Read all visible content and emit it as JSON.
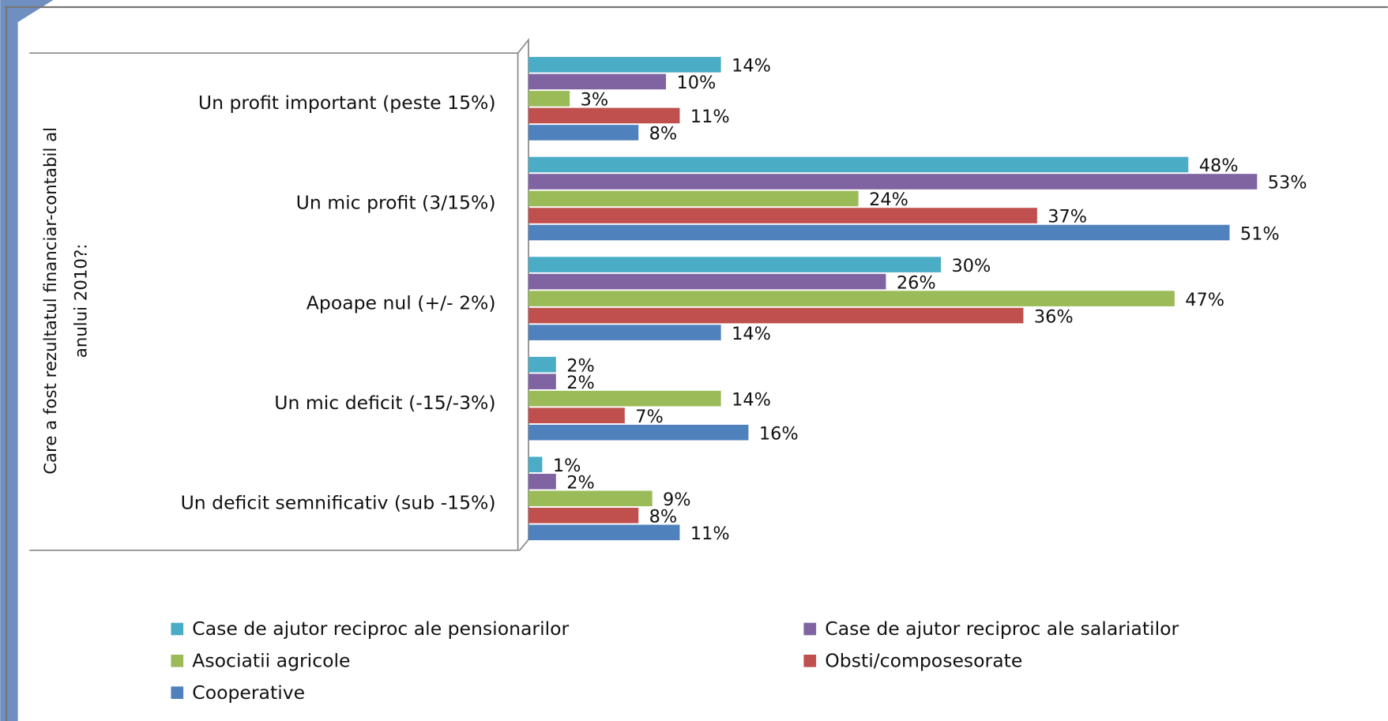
{
  "chart_data": {
    "type": "bar",
    "orientation": "horizontal",
    "y_label": [
      "Care a fost rezultatul financiar-contabil al",
      "anului 2010?:"
    ],
    "categories": [
      "Un profit important  (peste 15%)",
      "Un mic profit (3/15%)",
      "Apoape nul (+/- 2%)",
      "Un mic deficit (-15/-3%)",
      "Un deficit semnificativ (sub -15%)"
    ],
    "xlim": [
      0,
      60
    ],
    "series": [
      {
        "name": "Case de ajutor  reciproc ale pensionarilor",
        "color": "#4bacc6",
        "values": [
          14,
          48,
          30,
          2,
          1
        ],
        "value_labels": [
          "14%",
          "48%",
          "30%",
          "2%",
          "1%"
        ]
      },
      {
        "name": "Case de ajutor  reciproc ale salariatilor",
        "color": "#8064a2",
        "values": [
          10,
          53,
          26,
          2,
          2
        ],
        "value_labels": [
          "10%",
          "53%",
          "26%",
          "2%",
          "2%"
        ]
      },
      {
        "name": "Asociatii agricole",
        "color": "#9bbb59",
        "values": [
          3,
          24,
          47,
          14,
          9
        ],
        "value_labels": [
          "3%",
          "24%",
          "47%",
          "14%",
          "9%"
        ]
      },
      {
        "name": "Obsti/composesorate",
        "color": "#c0504d",
        "values": [
          11,
          37,
          36,
          7,
          8
        ],
        "value_labels": [
          "11%",
          "37%",
          "36%",
          "7%",
          "8%"
        ]
      },
      {
        "name": "Cooperative",
        "color": "#4f81bd",
        "values": [
          8,
          51,
          14,
          16,
          11
        ],
        "value_labels": [
          "8%",
          "51%",
          "14%",
          "16%",
          "11%"
        ]
      }
    ]
  }
}
